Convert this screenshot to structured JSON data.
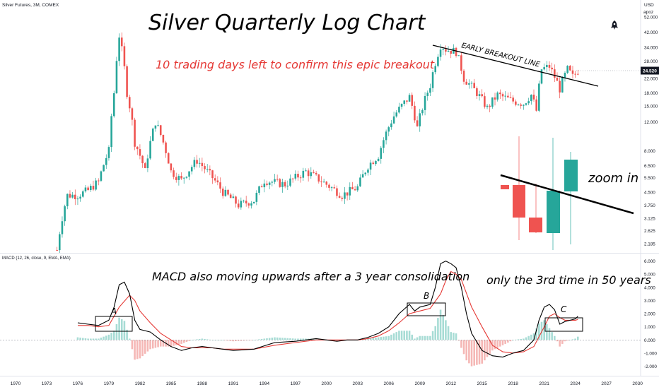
{
  "chart_header": "Silver Futures, 3M, COMEX",
  "currency": "USD",
  "scale_mode": "apoz",
  "last_price_label": "24.520",
  "colors": {
    "up": "#26a69a",
    "down": "#ef5350",
    "macd_line": "#000000",
    "signal_line": "#e53935",
    "hist_up": "#a7dcd5",
    "hist_down": "#f5b7b5",
    "annotation_red": "#e53935"
  },
  "icons": {
    "rocket": "rocket-icon"
  },
  "annotations": {
    "title": "Silver Quarterly Log Chart",
    "subtitle": "10 trading days left to confirm this epic breakout",
    "breakout_line": "EARLY BREAKOUT LINE",
    "zoom": "zoom in",
    "macd_note": "MACD also moving upwards after a 3 year consolidation",
    "third_time": "only the 3rd time in 50 years",
    "label_a": "A",
    "label_b": "B",
    "label_c": "C"
  },
  "macd_header": "MACD (12, 26, close, 9, EMA, EMA)",
  "chart_data": [
    {
      "type": "candlestick",
      "title": "Silver Futures, 3M, COMEX",
      "y_scale": "log",
      "ylim": [
        2.0,
        62.0
      ],
      "xlim": [
        1968.5,
        2030.3
      ],
      "y_ticks": [
        "52.000",
        "42.000",
        "34.000",
        "28.000",
        "22.000",
        "18.000",
        "15.000",
        "12.000",
        "8.000",
        "6.500",
        "5.500",
        "4.500",
        "3.750",
        "3.125",
        "2.625",
        "2.185"
      ],
      "x_ticks": [
        "1970",
        "1973",
        "1976",
        "1979",
        "1982",
        "1985",
        "1988",
        "1991",
        "1994",
        "1997",
        "2000",
        "2003",
        "2006",
        "2009",
        "2012",
        "2015",
        "2018",
        "2021",
        "2024",
        "2027",
        "2030"
      ],
      "ohlc_anchor_points": [
        {
          "t": 1974.0,
          "close": 2.0
        },
        {
          "t": 1975.0,
          "close": 4.3
        },
        {
          "t": 1976.0,
          "close": 4.3
        },
        {
          "t": 1977.0,
          "close": 4.6
        },
        {
          "t": 1978.0,
          "close": 5.2
        },
        {
          "t": 1979.0,
          "close": 8.0
        },
        {
          "t": 1979.5,
          "close": 18.0
        },
        {
          "t": 1980.0,
          "close": 40.0
        },
        {
          "t": 1980.75,
          "close": 18.0
        },
        {
          "t": 1981.5,
          "close": 9.0
        },
        {
          "t": 1982.5,
          "close": 6.0
        },
        {
          "t": 1983.5,
          "close": 12.0
        },
        {
          "t": 1985.0,
          "close": 6.0
        },
        {
          "t": 1986.0,
          "close": 5.3
        },
        {
          "t": 1987.5,
          "close": 7.0
        },
        {
          "t": 1990.0,
          "close": 4.5
        },
        {
          "t": 1991.5,
          "close": 3.75
        },
        {
          "t": 1993.0,
          "close": 4.0
        },
        {
          "t": 1994.0,
          "close": 5.3
        },
        {
          "t": 1996.0,
          "close": 5.0
        },
        {
          "t": 1998.0,
          "close": 6.0
        },
        {
          "t": 2000.0,
          "close": 5.0
        },
        {
          "t": 2001.5,
          "close": 4.3
        },
        {
          "t": 2003.0,
          "close": 4.8
        },
        {
          "t": 2004.0,
          "close": 6.5
        },
        {
          "t": 2005.0,
          "close": 7.5
        },
        {
          "t": 2006.5,
          "close": 13.0
        },
        {
          "t": 2008.0,
          "close": 17.0
        },
        {
          "t": 2008.75,
          "close": 11.0
        },
        {
          "t": 2010.0,
          "close": 20.0
        },
        {
          "t": 2011.0,
          "close": 35.0
        },
        {
          "t": 2011.5,
          "close": 33.0
        },
        {
          "t": 2012.5,
          "close": 32.0
        },
        {
          "t": 2013.25,
          "close": 22.0
        },
        {
          "t": 2014.5,
          "close": 18.0
        },
        {
          "t": 2015.5,
          "close": 14.5
        },
        {
          "t": 2016.5,
          "close": 17.5
        },
        {
          "t": 2018.0,
          "close": 16.0
        },
        {
          "t": 2019.0,
          "close": 15.5
        },
        {
          "t": 2019.75,
          "close": 17.5
        },
        {
          "t": 2020.25,
          "close": 14.0
        },
        {
          "t": 2020.75,
          "close": 25.0
        },
        {
          "t": 2021.5,
          "close": 26.0
        },
        {
          "t": 2022.5,
          "close": 19.0
        },
        {
          "t": 2023.25,
          "close": 25.0
        },
        {
          "t": 2023.75,
          "close": 22.5
        },
        {
          "t": 2024.25,
          "close": 24.5
        }
      ]
    },
    {
      "type": "line",
      "title": "MACD (12, 26, close, 9, EMA, EMA)",
      "ylim": [
        -2.4,
        6.3
      ],
      "y_ticks": [
        "6.000",
        "5.000",
        "4.000",
        "3.000",
        "2.000",
        "1.000",
        "0.000",
        "-1.000",
        "-2.000"
      ],
      "series": [
        {
          "points": [
            [
              1976.0,
              1.3
            ],
            [
              1977.0,
              1.2
            ],
            [
              1978.0,
              1.1
            ],
            [
              1979.0,
              1.5
            ],
            [
              1979.5,
              2.5
            ],
            [
              1980.0,
              4.2
            ],
            [
              1980.5,
              4.4
            ],
            [
              1981.0,
              3.5
            ],
            [
              1981.5,
              1.5
            ],
            [
              1982.0,
              0.8
            ],
            [
              1983.0,
              0.6
            ],
            [
              1984.0,
              0.0
            ],
            [
              1985.0,
              -0.5
            ],
            [
              1986.0,
              -0.8
            ],
            [
              1987.0,
              -0.6
            ],
            [
              1988.0,
              -0.5
            ],
            [
              1989.0,
              -0.6
            ],
            [
              1990.0,
              -0.7
            ],
            [
              1991.0,
              -0.8
            ],
            [
              1993.0,
              -0.7
            ],
            [
              1995.0,
              -0.2
            ],
            [
              1997.0,
              -0.1
            ],
            [
              1999.0,
              0.1
            ],
            [
              2001.0,
              -0.1
            ],
            [
              2002.0,
              0.0
            ],
            [
              2003.0,
              0.0
            ],
            [
              2004.0,
              0.2
            ],
            [
              2005.0,
              0.5
            ],
            [
              2006.0,
              1.0
            ],
            [
              2007.0,
              2.0
            ],
            [
              2008.0,
              2.7
            ],
            [
              2008.5,
              2.2
            ],
            [
              2009.0,
              2.5
            ],
            [
              2010.0,
              2.7
            ],
            [
              2010.5,
              4.0
            ],
            [
              2011.0,
              5.8
            ],
            [
              2011.5,
              6.0
            ],
            [
              2012.0,
              5.8
            ],
            [
              2012.5,
              5.5
            ],
            [
              2013.0,
              4.0
            ],
            [
              2013.5,
              2.0
            ],
            [
              2014.0,
              0.5
            ],
            [
              2015.0,
              -0.8
            ],
            [
              2016.0,
              -1.2
            ],
            [
              2017.0,
              -1.3
            ],
            [
              2018.0,
              -1.0
            ],
            [
              2019.0,
              -0.8
            ],
            [
              2020.0,
              0.0
            ],
            [
              2020.5,
              1.5
            ],
            [
              2021.0,
              2.5
            ],
            [
              2021.5,
              2.7
            ],
            [
              2022.0,
              2.3
            ],
            [
              2022.5,
              1.2
            ],
            [
              2023.0,
              1.4
            ],
            [
              2023.5,
              1.5
            ],
            [
              2024.0,
              1.6
            ],
            [
              2024.25,
              1.8
            ]
          ]
        },
        {
          "points": [
            [
              1976.0,
              1.1
            ],
            [
              1977.0,
              1.1
            ],
            [
              1978.0,
              1.0
            ],
            [
              1979.0,
              1.1
            ],
            [
              1980.0,
              2.5
            ],
            [
              1981.0,
              3.4
            ],
            [
              1981.5,
              3.0
            ],
            [
              1982.0,
              2.2
            ],
            [
              1983.0,
              1.3
            ],
            [
              1984.0,
              0.5
            ],
            [
              1985.0,
              0.0
            ],
            [
              1986.0,
              -0.5
            ],
            [
              1987.0,
              -0.6
            ],
            [
              1988.0,
              -0.6
            ],
            [
              1989.0,
              -0.6
            ],
            [
              1990.0,
              -0.7
            ],
            [
              1991.0,
              -0.7
            ],
            [
              1993.0,
              -0.7
            ],
            [
              1995.0,
              -0.4
            ],
            [
              1997.0,
              -0.2
            ],
            [
              1999.0,
              0.0
            ],
            [
              2001.0,
              0.0
            ],
            [
              2003.0,
              0.0
            ],
            [
              2004.0,
              0.1
            ],
            [
              2005.0,
              0.3
            ],
            [
              2006.0,
              0.7
            ],
            [
              2007.0,
              1.3
            ],
            [
              2008.0,
              2.0
            ],
            [
              2009.0,
              2.2
            ],
            [
              2010.0,
              2.4
            ],
            [
              2011.0,
              3.5
            ],
            [
              2011.5,
              4.5
            ],
            [
              2012.0,
              5.2
            ],
            [
              2012.5,
              5.0
            ],
            [
              2013.0,
              4.6
            ],
            [
              2014.0,
              2.5
            ],
            [
              2015.0,
              1.0
            ],
            [
              2016.0,
              -0.4
            ],
            [
              2017.0,
              -0.9
            ],
            [
              2018.0,
              -1.0
            ],
            [
              2019.0,
              -0.9
            ],
            [
              2020.0,
              -0.5
            ],
            [
              2021.0,
              1.0
            ],
            [
              2021.5,
              1.8
            ],
            [
              2022.0,
              2.0
            ],
            [
              2022.5,
              1.7
            ],
            [
              2023.0,
              1.5
            ],
            [
              2023.5,
              1.5
            ],
            [
              2024.0,
              1.5
            ],
            [
              2024.25,
              1.55
            ]
          ]
        }
      ]
    }
  ]
}
